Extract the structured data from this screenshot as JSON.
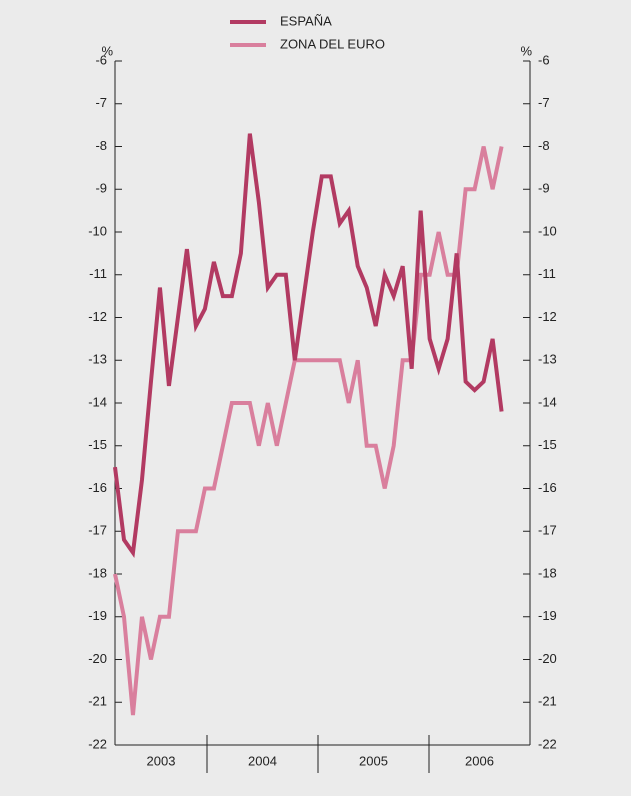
{
  "chart_data": {
    "type": "line",
    "y_unit": "%",
    "x": [
      2003.171,
      2003.252,
      2003.333,
      2003.414,
      2003.495,
      2003.576,
      2003.657,
      2003.738,
      2003.819,
      2003.9,
      2003.981,
      2004.062,
      2004.143,
      2004.224,
      2004.305,
      2004.386,
      2004.467,
      2004.548,
      2004.629,
      2004.71,
      2004.791,
      2004.872,
      2004.953,
      2005.034,
      2005.115,
      2005.196,
      2005.277,
      2005.358,
      2005.439,
      2005.52,
      2005.601,
      2005.682,
      2005.763,
      2005.844,
      2005.925,
      2006.006,
      2006.087,
      2006.168,
      2006.249,
      2006.33,
      2006.411,
      2006.492,
      2006.573,
      2006.654
    ],
    "series": [
      {
        "name": "ESPAÑA",
        "color": "#b23a62",
        "values": [
          -15.5,
          -17.2,
          -17.5,
          -15.8,
          -13.5,
          -11.3,
          -13.6,
          -12,
          -10.4,
          -12.2,
          -11.8,
          -10.7,
          -11.5,
          -11.5,
          -10.5,
          -7.7,
          -9.3,
          -11.3,
          -11,
          -11,
          -13,
          -11.5,
          -10,
          -8.7,
          -8.7,
          -9.8,
          -9.5,
          -10.8,
          -11.3,
          -12.2,
          -11,
          -11.5,
          -10.8,
          -13.2,
          -9.5,
          -12.5,
          -13.2,
          -12.5,
          -10.5,
          -13.5,
          -13.7,
          -13.5,
          -12.5,
          -14.2
        ]
      },
      {
        "name": "ZONA DEL EURO",
        "color": "#d97f9d",
        "values": [
          -18,
          -19,
          -21.3,
          -19,
          -20,
          -19,
          -19,
          -17,
          -17,
          -17,
          -16,
          -16,
          -15,
          -14,
          -14,
          -14,
          -15,
          -14,
          -15,
          -14,
          -13,
          -13,
          -13,
          -13,
          -13,
          -13,
          -14,
          -13,
          -15,
          -15,
          -16,
          -15,
          -13,
          -13,
          -11,
          -11,
          -10,
          -11,
          -11,
          -9,
          -9,
          -8,
          -9,
          -8
        ]
      }
    ],
    "xlim": [
      2003.171,
      2006.91
    ],
    "xticks": [
      2004,
      2005,
      2006
    ],
    "year_labels": [
      "2003",
      "2004",
      "2005",
      "2006"
    ],
    "ylim": [
      -22,
      -6
    ],
    "yticks": [
      -22,
      -21,
      -20,
      -19,
      -18,
      -17,
      -16,
      -15,
      -14,
      -13,
      -12,
      -11,
      -10,
      -9,
      -8,
      -7,
      -6
    ],
    "legend": "top"
  }
}
